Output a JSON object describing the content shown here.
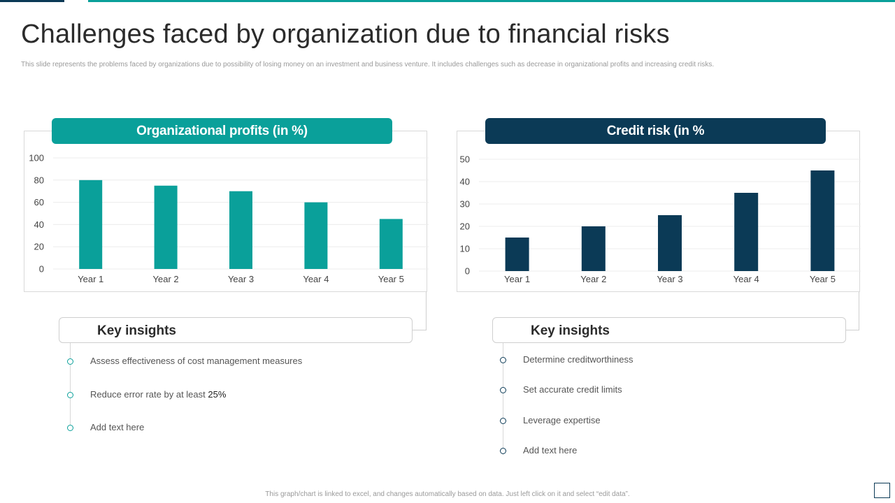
{
  "title": "Challenges faced by organization due to financial risks",
  "subtitle": "This slide represents the problems faced by organizations due to possibility of losing money on an investment and business venture. It includes challenges such as decrease in organizational profits and increasing credit risks.",
  "footer": "This graph/chart is linked to excel, and changes automatically based on data. Just left click on it and select “edit data”.",
  "colors": {
    "teal": "#0aa09a",
    "navy": "#0b3a56"
  },
  "chart_data": [
    {
      "type": "bar",
      "title": "Organizational profits (in %)",
      "categories": [
        "Year 1",
        "Year 2",
        "Year 3",
        "Year 4",
        "Year 5"
      ],
      "values": [
        80,
        75,
        70,
        60,
        45
      ],
      "ylim": [
        0,
        100
      ],
      "yticks": [
        0,
        20,
        40,
        60,
        80,
        100
      ],
      "color": "#0aa09a",
      "grid": true
    },
    {
      "type": "bar",
      "title": "Credit risk (in %",
      "categories": [
        "Year 1",
        "Year 2",
        "Year 3",
        "Year 4",
        "Year 5"
      ],
      "values": [
        15,
        20,
        25,
        35,
        45
      ],
      "ylim": [
        0,
        50
      ],
      "yticks": [
        0,
        10,
        20,
        30,
        40,
        50
      ],
      "color": "#0b3a56",
      "grid": true
    }
  ],
  "left_insights": {
    "title": "Key insights",
    "items": [
      "Assess effectiveness  of cost management  measures",
      "Reduce error rate by at least ",
      "Add text here"
    ],
    "highlight": "25%"
  },
  "right_insights": {
    "title": "Key insights",
    "items": [
      "Determine  creditworthiness",
      "Set accurate credit limits",
      "Leverage  expertise",
      "Add text here"
    ]
  }
}
